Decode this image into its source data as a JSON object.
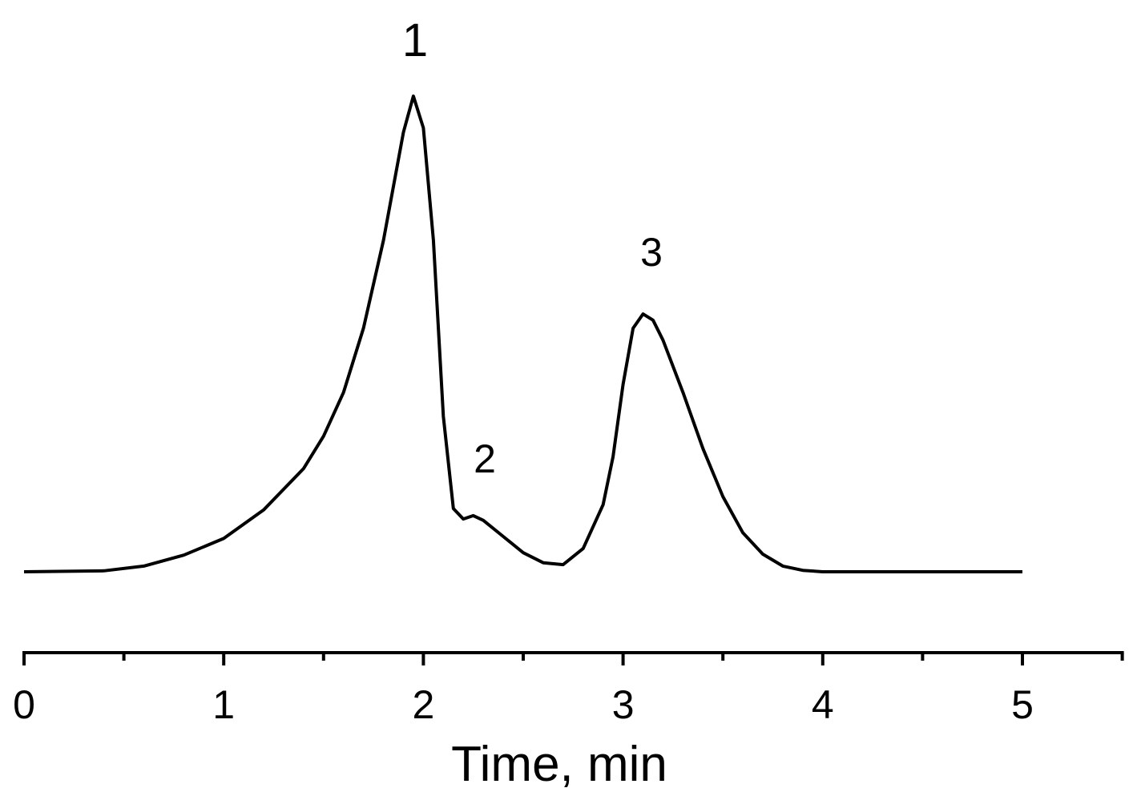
{
  "chart_data": {
    "type": "line",
    "xlabel": "Time, min",
    "annotations": [
      "1",
      "2",
      "3"
    ],
    "x": [
      0,
      0.4,
      0.6,
      0.8,
      1.0,
      1.2,
      1.4,
      1.5,
      1.6,
      1.7,
      1.8,
      1.9,
      1.95,
      2.0,
      2.05,
      2.1,
      2.15,
      2.2,
      2.25,
      2.3,
      2.4,
      2.5,
      2.6,
      2.7,
      2.8,
      2.9,
      2.95,
      3.0,
      3.05,
      3.1,
      3.15,
      3.2,
      3.3,
      3.4,
      3.5,
      3.6,
      3.7,
      3.8,
      3.9,
      4.0,
      5.0
    ],
    "series": [
      {
        "color": "#000000",
        "values": [
          0,
          0.2,
          1.2,
          3.5,
          7,
          13,
          21.7,
          28.5,
          37.7,
          51.2,
          69.7,
          92.4,
          100,
          93.3,
          69.7,
          32.7,
          13.3,
          11.1,
          11.8,
          10.8,
          7.4,
          4.0,
          1.9,
          1.5,
          4.9,
          14.1,
          24.2,
          39.4,
          51.2,
          54.2,
          52.9,
          48.7,
          37.7,
          25.9,
          15.8,
          8.2,
          3.7,
          1.2,
          0.3,
          0,
          0
        ]
      }
    ],
    "xlim": [
      0,
      5.5
    ],
    "xticks": [
      0,
      1,
      2,
      3,
      4,
      5
    ],
    "xminorticks": [
      0.5,
      1.5,
      2.5,
      3.5,
      4.5,
      5.5
    ],
    "ylim": [
      0,
      100
    ],
    "grid": false
  }
}
